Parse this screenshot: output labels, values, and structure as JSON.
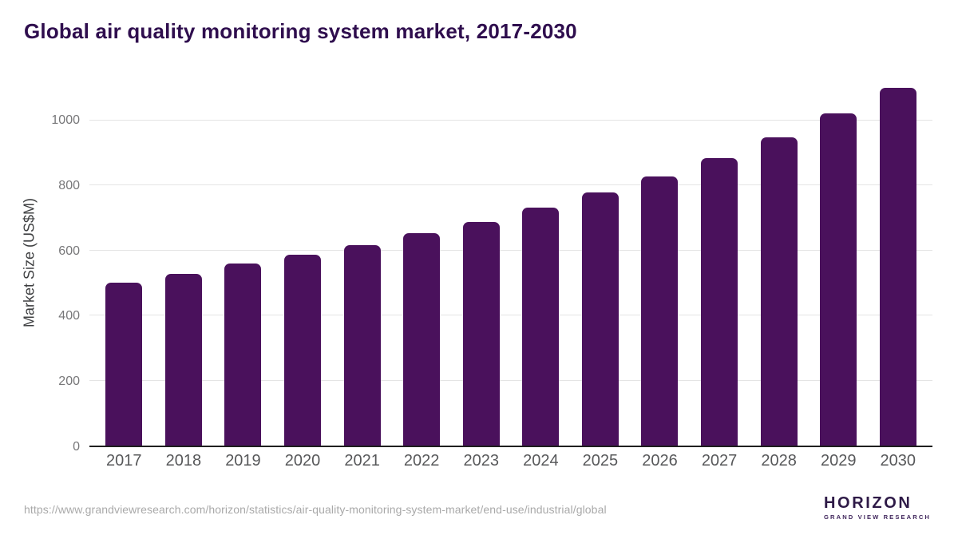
{
  "title": "Global air quality monitoring system market, 2017-2030",
  "chart_data": {
    "type": "bar",
    "title": "Global air quality monitoring system market, 2017-2030",
    "categories": [
      "2017",
      "2018",
      "2019",
      "2020",
      "2021",
      "2022",
      "2023",
      "2024",
      "2025",
      "2026",
      "2027",
      "2028",
      "2029",
      "2030"
    ],
    "values": [
      502,
      528,
      559,
      588,
      617,
      653,
      689,
      731,
      779,
      829,
      885,
      948,
      1022,
      1100
    ],
    "xlabel": "",
    "ylabel": "Market Size (US$M)",
    "ylim": [
      0,
      1130
    ],
    "yticks": [
      0,
      200,
      400,
      600,
      800,
      1000
    ],
    "grid": "horizontal",
    "legend": "none",
    "bar_color": "#4a115c"
  },
  "colors": {
    "bar": "#4a115c",
    "title": "#2f0e4e",
    "axis_line": "#1f1f1f",
    "gridline": "#e4e4e4",
    "tick_label": "#777779",
    "year_label": "#57585a",
    "url_text": "#a9a9a9",
    "logo_dark": "#2e1a47",
    "logo_blue": "#5bc0ee"
  },
  "footer": {
    "source_url": "https://www.grandviewresearch.com/horizon/statistics/air-quality-monitoring-system-market/end-use/industrial/global",
    "logo_name": "HORIZON",
    "logo_subtitle": "GRAND VIEW RESEARCH"
  }
}
